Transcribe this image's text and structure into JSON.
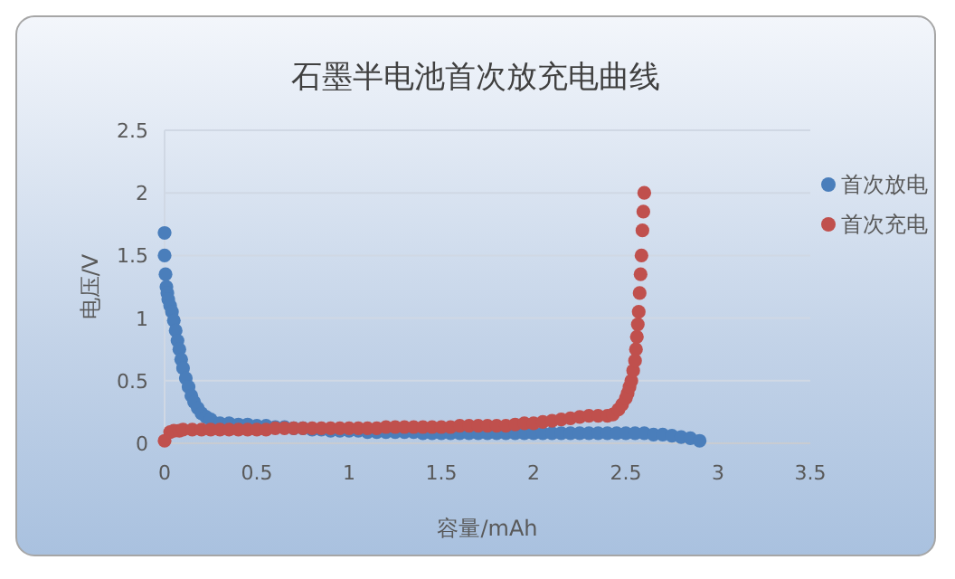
{
  "chart_data": {
    "type": "scatter",
    "title": "石墨半电池首次放充电曲线",
    "xlabel": "容量/mAh",
    "ylabel": "电压/V",
    "xlim": [
      0,
      3.5
    ],
    "xticks": [
      0,
      0.5,
      1,
      1.5,
      2,
      2.5,
      3,
      3.5
    ],
    "ylim": [
      0,
      2.5
    ],
    "yticks": [
      0,
      0.5,
      1,
      1.5,
      2,
      2.5
    ],
    "grid": "y",
    "legend": "right",
    "marker": "circle",
    "series": [
      {
        "name": "首次放电",
        "color": "#4a7ebb",
        "x": [
          0,
          0,
          0.005,
          0.01,
          0.015,
          0.02,
          0.03,
          0.04,
          0.05,
          0.06,
          0.07,
          0.08,
          0.09,
          0.1,
          0.115,
          0.13,
          0.145,
          0.16,
          0.18,
          0.2,
          0.225,
          0.25,
          0.3,
          0.35,
          0.4,
          0.45,
          0.5,
          0.55,
          0.6,
          0.65,
          0.7,
          0.75,
          0.8,
          0.85,
          0.9,
          0.95,
          1,
          1.05,
          1.1,
          1.15,
          1.2,
          1.25,
          1.3,
          1.35,
          1.4,
          1.45,
          1.5,
          1.55,
          1.6,
          1.65,
          1.7,
          1.75,
          1.8,
          1.85,
          1.9,
          1.95,
          2,
          2.05,
          2.1,
          2.15,
          2.2,
          2.25,
          2.3,
          2.35,
          2.4,
          2.45,
          2.5,
          2.55,
          2.6,
          2.65,
          2.7,
          2.75,
          2.8,
          2.85,
          2.9
        ],
        "values": [
          1.68,
          1.5,
          1.35,
          1.25,
          1.2,
          1.15,
          1.1,
          1.05,
          0.98,
          0.9,
          0.82,
          0.75,
          0.67,
          0.6,
          0.52,
          0.45,
          0.38,
          0.33,
          0.28,
          0.24,
          0.21,
          0.19,
          0.16,
          0.16,
          0.15,
          0.15,
          0.14,
          0.14,
          0.13,
          0.13,
          0.12,
          0.12,
          0.11,
          0.11,
          0.1,
          0.1,
          0.1,
          0.1,
          0.09,
          0.09,
          0.09,
          0.09,
          0.09,
          0.09,
          0.08,
          0.08,
          0.08,
          0.08,
          0.08,
          0.08,
          0.08,
          0.08,
          0.08,
          0.08,
          0.08,
          0.08,
          0.08,
          0.08,
          0.08,
          0.08,
          0.08,
          0.08,
          0.08,
          0.08,
          0.08,
          0.08,
          0.08,
          0.08,
          0.08,
          0.07,
          0.07,
          0.06,
          0.05,
          0.04,
          0.02
        ]
      },
      {
        "name": "首次充电",
        "color": "#c0504d",
        "x": [
          0,
          0.03,
          0.05,
          0.08,
          0.1,
          0.15,
          0.2,
          0.25,
          0.3,
          0.35,
          0.4,
          0.45,
          0.5,
          0.55,
          0.6,
          0.65,
          0.7,
          0.75,
          0.8,
          0.85,
          0.9,
          0.95,
          1,
          1.05,
          1.1,
          1.15,
          1.2,
          1.25,
          1.3,
          1.35,
          1.4,
          1.45,
          1.5,
          1.55,
          1.6,
          1.65,
          1.7,
          1.75,
          1.8,
          1.85,
          1.9,
          1.95,
          2,
          2.05,
          2.1,
          2.15,
          2.2,
          2.25,
          2.3,
          2.35,
          2.4,
          2.43,
          2.46,
          2.48,
          2.5,
          2.51,
          2.52,
          2.53,
          2.54,
          2.55,
          2.555,
          2.56,
          2.565,
          2.57,
          2.575,
          2.58,
          2.585,
          2.59,
          2.595,
          2.6
        ],
        "values": [
          0.02,
          0.09,
          0.1,
          0.1,
          0.11,
          0.11,
          0.11,
          0.11,
          0.11,
          0.11,
          0.11,
          0.11,
          0.11,
          0.11,
          0.12,
          0.12,
          0.12,
          0.12,
          0.12,
          0.12,
          0.12,
          0.12,
          0.12,
          0.12,
          0.12,
          0.12,
          0.13,
          0.13,
          0.13,
          0.13,
          0.13,
          0.13,
          0.13,
          0.13,
          0.14,
          0.14,
          0.14,
          0.14,
          0.14,
          0.14,
          0.15,
          0.16,
          0.16,
          0.17,
          0.18,
          0.19,
          0.2,
          0.21,
          0.22,
          0.22,
          0.22,
          0.23,
          0.27,
          0.31,
          0.36,
          0.4,
          0.45,
          0.5,
          0.58,
          0.66,
          0.75,
          0.85,
          0.95,
          1.05,
          1.2,
          1.35,
          1.5,
          1.7,
          1.85,
          2.0
        ]
      }
    ]
  }
}
